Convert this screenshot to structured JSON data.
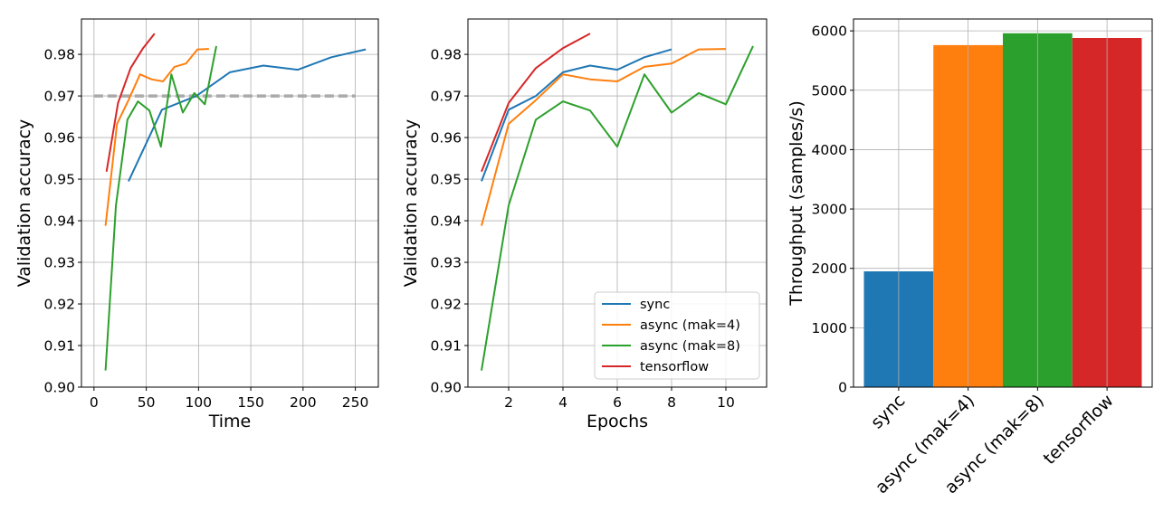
{
  "colors": {
    "sync": "#1f77b4",
    "async4": "#ff7f0e",
    "async8": "#2ca02c",
    "tensorflow": "#d62728",
    "threshold": "#aaaaaa"
  },
  "chart_data": [
    {
      "type": "line",
      "xlabel": "Time",
      "ylabel": "Validation accuracy",
      "xlim": [
        -12,
        272
      ],
      "ylim": [
        0.9,
        0.9885
      ],
      "xticks": [
        0,
        50,
        100,
        150,
        200,
        250
      ],
      "yticks": [
        0.9,
        0.91,
        0.92,
        0.93,
        0.94,
        0.95,
        0.96,
        0.97,
        0.98
      ],
      "grid": true,
      "threshold": {
        "y": 0.97,
        "x": [
          0,
          250
        ],
        "style": "dashed"
      },
      "series": [
        {
          "key": "sync",
          "x": [
            33,
            65,
            98,
            130,
            162,
            195,
            227,
            260
          ],
          "y": [
            0.9495,
            0.9667,
            0.97,
            0.9757,
            0.9773,
            0.9763,
            0.9793,
            0.9812
          ]
        },
        {
          "key": "async4",
          "x": [
            11,
            22,
            33,
            44,
            55,
            66,
            77,
            88,
            99,
            110
          ],
          "y": [
            0.9388,
            0.9633,
            0.969,
            0.9752,
            0.974,
            0.9735,
            0.977,
            0.9778,
            0.9812,
            0.9813
          ]
        },
        {
          "key": "async8",
          "x": [
            11,
            21,
            32,
            42,
            53,
            64,
            74,
            85,
            96,
            106,
            117
          ],
          "y": [
            0.904,
            0.9437,
            0.9643,
            0.9687,
            0.9665,
            0.9578,
            0.9752,
            0.966,
            0.9707,
            0.968,
            0.982
          ]
        },
        {
          "key": "tensorflow",
          "x": [
            12,
            23,
            35,
            47,
            58
          ],
          "y": [
            0.9518,
            0.9683,
            0.9767,
            0.9815,
            0.985
          ]
        }
      ]
    },
    {
      "type": "line",
      "xlabel": "Epochs",
      "ylabel": "Validation accuracy",
      "xlim": [
        0.5,
        11.5
      ],
      "ylim": [
        0.9,
        0.9885
      ],
      "xticks": [
        2,
        4,
        6,
        8,
        10
      ],
      "yticks": [
        0.9,
        0.91,
        0.92,
        0.93,
        0.94,
        0.95,
        0.96,
        0.97,
        0.98
      ],
      "grid": true,
      "legend_position": "lower-right",
      "series": [
        {
          "key": "sync",
          "name": "sync",
          "x": [
            1,
            2,
            3,
            4,
            5,
            6,
            7,
            8
          ],
          "y": [
            0.9495,
            0.9667,
            0.97,
            0.9757,
            0.9773,
            0.9763,
            0.9793,
            0.9812
          ]
        },
        {
          "key": "async4",
          "name": "async (mak=4)",
          "x": [
            1,
            2,
            3,
            4,
            5,
            6,
            7,
            8,
            9,
            10
          ],
          "y": [
            0.9388,
            0.9633,
            0.969,
            0.9752,
            0.974,
            0.9735,
            0.977,
            0.9778,
            0.9812,
            0.9813
          ]
        },
        {
          "key": "async8",
          "name": "async (mak=8)",
          "x": [
            1,
            2,
            3,
            4,
            5,
            6,
            7,
            8,
            9,
            10,
            11
          ],
          "y": [
            0.904,
            0.9437,
            0.9643,
            0.9687,
            0.9665,
            0.9578,
            0.9752,
            0.966,
            0.9707,
            0.968,
            0.982
          ]
        },
        {
          "key": "tensorflow",
          "name": "tensorflow",
          "x": [
            1,
            2,
            3,
            4,
            5
          ],
          "y": [
            0.9518,
            0.9683,
            0.9767,
            0.9815,
            0.985
          ]
        }
      ]
    },
    {
      "type": "bar",
      "ylabel": "Throughput (samples/s)",
      "ylim": [
        0,
        6200
      ],
      "yticks": [
        0,
        1000,
        2000,
        3000,
        4000,
        5000,
        6000
      ],
      "grid": true,
      "categories": [
        "sync",
        "async (mak=4)",
        "async (mak=8)",
        "tensorflow"
      ],
      "keys": [
        "sync",
        "async4",
        "async8",
        "tensorflow"
      ],
      "values": [
        1950,
        5760,
        5960,
        5880
      ]
    }
  ]
}
